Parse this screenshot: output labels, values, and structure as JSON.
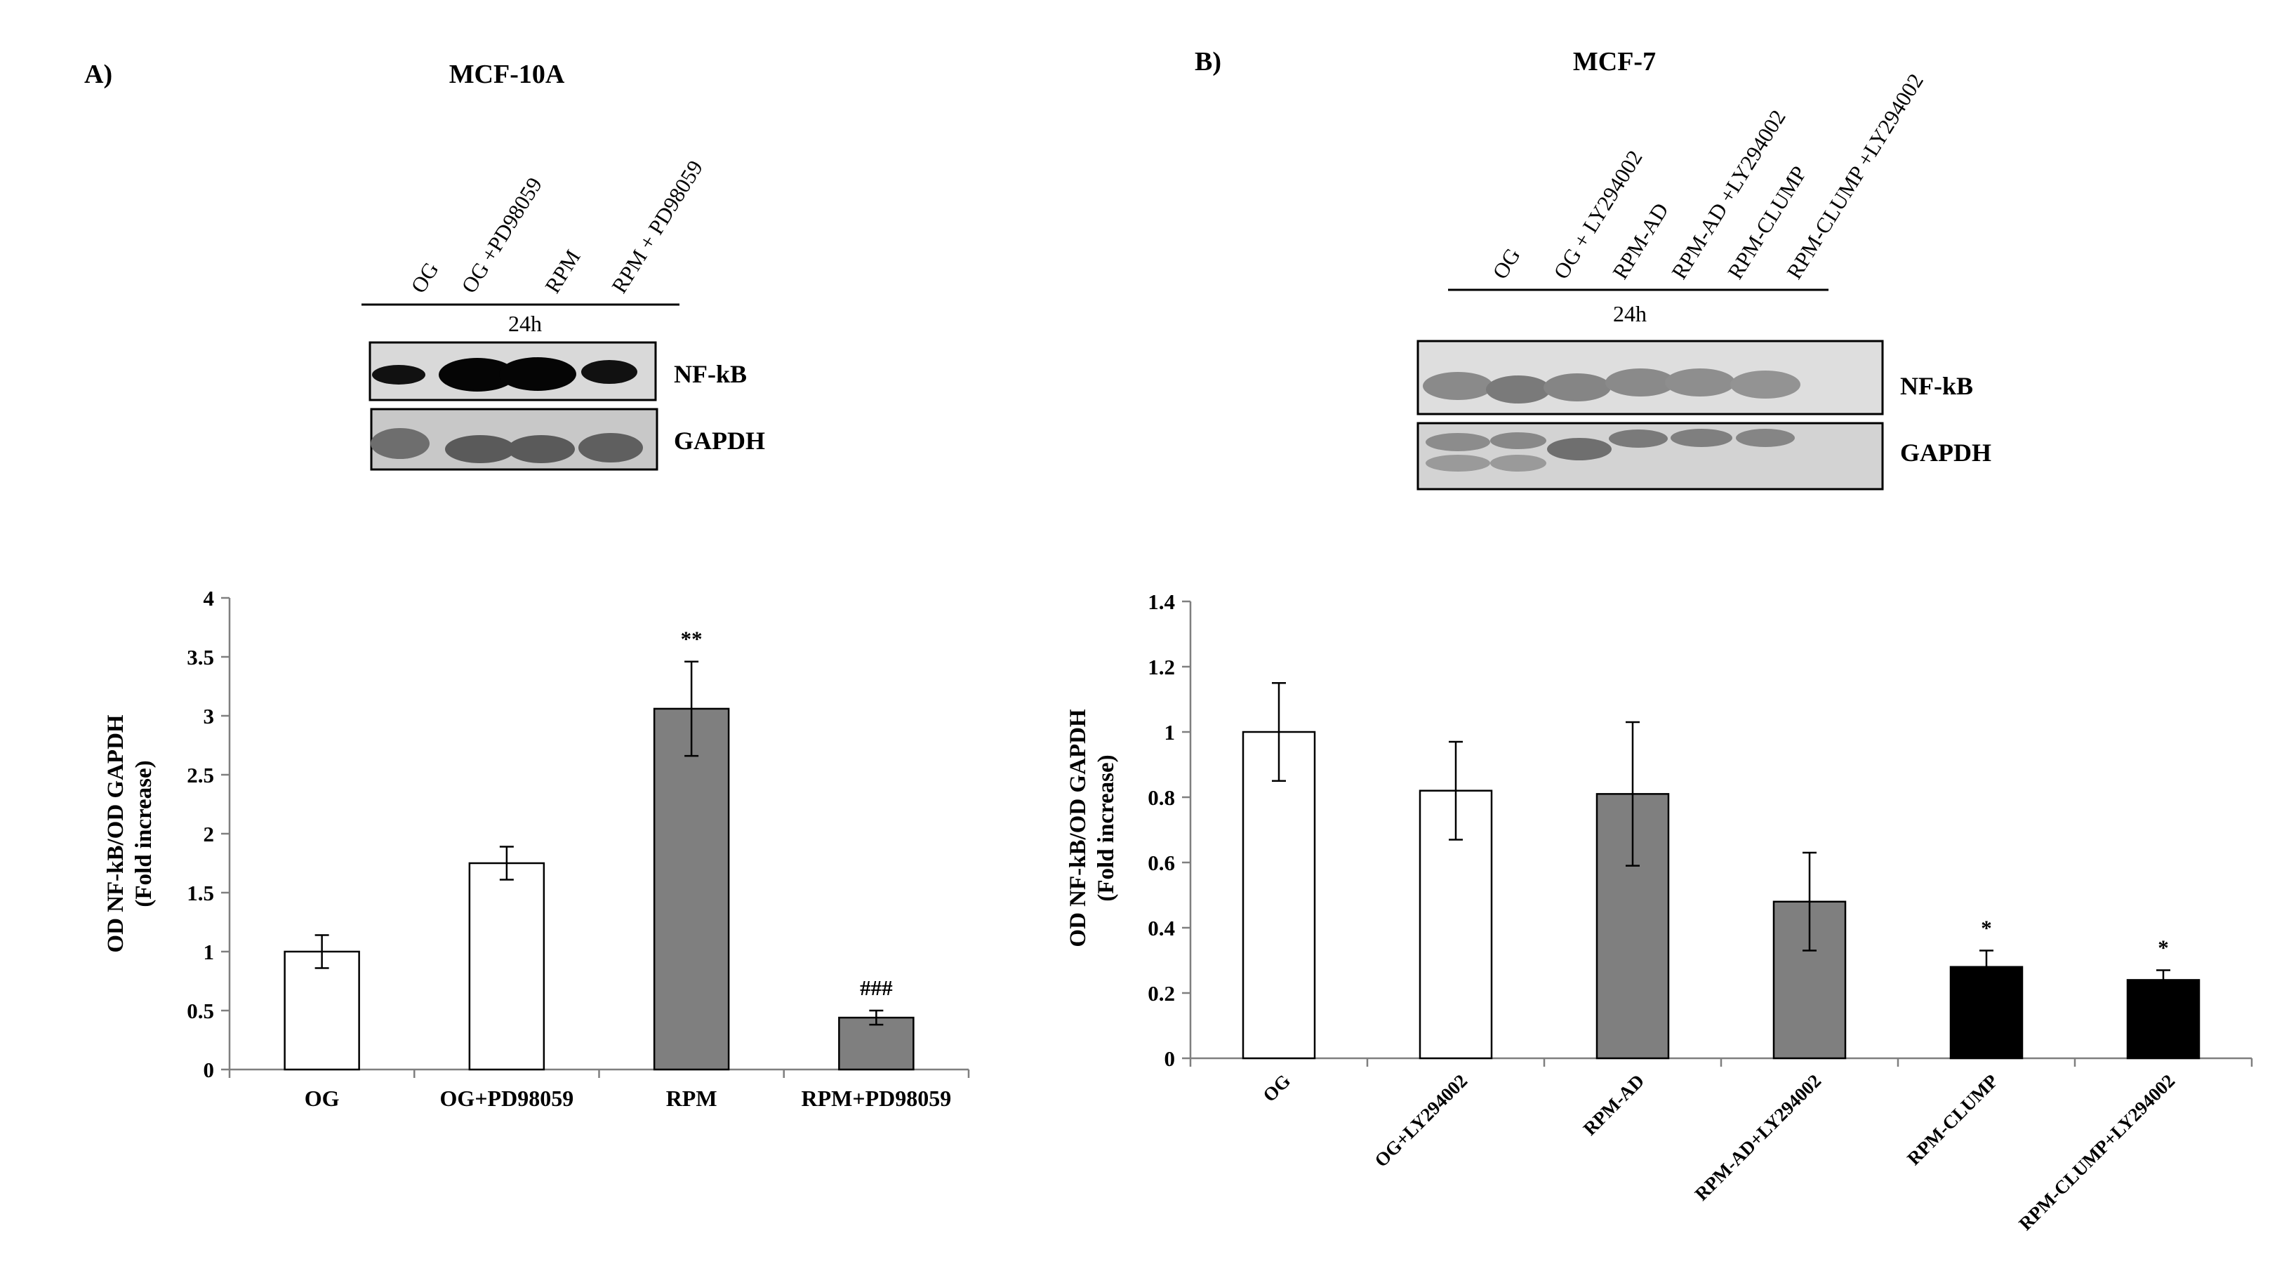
{
  "panel_a": {
    "label": "A)",
    "title": "MCF-10A",
    "lanes": [
      "OG",
      "OG +PD98059",
      "RPM",
      "RPM + PD98059"
    ],
    "time": "24h",
    "blots": [
      "NF-kB",
      "GAPDH"
    ]
  },
  "panel_b": {
    "label": "B)",
    "title": "MCF-7",
    "lanes": [
      "OG",
      "OG + LY294002",
      "RPM-AD",
      "RPM-AD +LY294002",
      "RPM-CLUMP",
      "RPM-CLUMP +LY294002"
    ],
    "time": "24h",
    "blots": [
      "NF-kB",
      "GAPDH"
    ]
  },
  "chart_data": [
    {
      "type": "bar",
      "categories": [
        "OG",
        "OG+PD98059",
        "RPM",
        "RPM+PD98059"
      ],
      "values": [
        1.0,
        1.75,
        3.06,
        0.44
      ],
      "errors": [
        0.14,
        0.14,
        0.4,
        0.06
      ],
      "colors": [
        "#ffffff",
        "#ffffff",
        "#7f7f7f",
        "#7f7f7f"
      ],
      "annotations": [
        "",
        "",
        "**",
        "###"
      ],
      "ylabel_line1": "OD NF-kB/OD GAPDH",
      "ylabel_line2": "(Fold increase)",
      "ylim": [
        0,
        4
      ],
      "yticks": [
        0,
        0.5,
        1,
        1.5,
        2,
        2.5,
        3,
        3.5,
        4
      ],
      "ytick_labels": [
        "0",
        "0.5",
        "1",
        "1.5",
        "2",
        "2.5",
        "3",
        "3.5",
        "4"
      ],
      "grid": false
    },
    {
      "type": "bar",
      "categories": [
        "OG",
        "OG+LY294002",
        "RPM-AD",
        "RPM-AD+LY294002",
        "RPM-CLUMP",
        "RPM-CLUMP+LY294002"
      ],
      "values": [
        1.0,
        0.82,
        0.81,
        0.48,
        0.28,
        0.24
      ],
      "errors": [
        0.15,
        0.15,
        0.22,
        0.15,
        0.05,
        0.03
      ],
      "colors": [
        "#ffffff",
        "#ffffff",
        "#7f7f7f",
        "#7f7f7f",
        "#000000",
        "#000000"
      ],
      "annotations": [
        "",
        "",
        "",
        "",
        "*",
        "*"
      ],
      "ylabel_line1": "OD NF-kB/OD GAPDH",
      "ylabel_line2": "(Fold increase)",
      "ylim": [
        0,
        1.4
      ],
      "yticks": [
        0,
        0.2,
        0.4,
        0.6,
        0.8,
        1.0,
        1.2,
        1.4
      ],
      "ytick_labels": [
        "0",
        "0.2",
        "0.4",
        "0.6",
        "0.8",
        "1",
        "1.2",
        "1.4"
      ],
      "grid": false
    }
  ]
}
